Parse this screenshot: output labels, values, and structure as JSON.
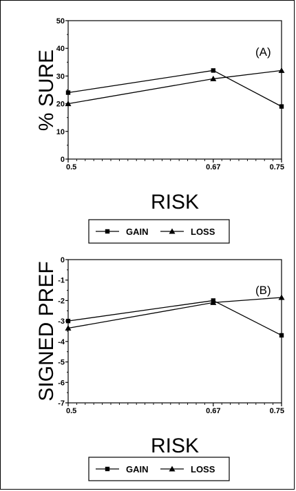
{
  "chart_data": [
    {
      "type": "line",
      "panel_label": "(A)",
      "ylabel": "% SURE",
      "xlabel": "RISK",
      "x": [
        0.5,
        0.67,
        0.75
      ],
      "x_tick_labels": [
        "0.5",
        "0.67",
        "0.75"
      ],
      "ylim": [
        0,
        50
      ],
      "y_ticks": [
        0,
        10,
        20,
        30,
        40,
        50
      ],
      "y_tick_labels": [
        "0",
        "10",
        "20",
        "30",
        "40",
        "50"
      ],
      "series": [
        {
          "name": "GAIN",
          "marker": "square",
          "values": [
            24,
            32,
            19
          ]
        },
        {
          "name": "LOSS",
          "marker": "triangle",
          "values": [
            20,
            29,
            32
          ]
        }
      ],
      "legend_placement": "bottom"
    },
    {
      "type": "line",
      "panel_label": "(B)",
      "ylabel": "SIGNED PREF",
      "xlabel": "RISK",
      "x": [
        0.5,
        0.67,
        0.75
      ],
      "x_tick_labels": [
        "0.5",
        "0.67",
        "0.75"
      ],
      "ylim": [
        -7,
        0
      ],
      "y_ticks": [
        0,
        -1,
        -2,
        -3,
        -4,
        -5,
        -6,
        -7
      ],
      "y_tick_labels": [
        "0",
        "-1",
        "-2",
        "-3",
        "-4",
        "-5",
        "-6",
        "-7"
      ],
      "series": [
        {
          "name": "GAIN",
          "marker": "square",
          "values": [
            -3.0,
            -2.0,
            -3.7
          ]
        },
        {
          "name": "LOSS",
          "marker": "triangle",
          "values": [
            -3.35,
            -2.1,
            -1.85
          ]
        }
      ],
      "legend_placement": "bottom"
    }
  ],
  "colors": {
    "line": "#000000",
    "background": "#ffffff"
  }
}
